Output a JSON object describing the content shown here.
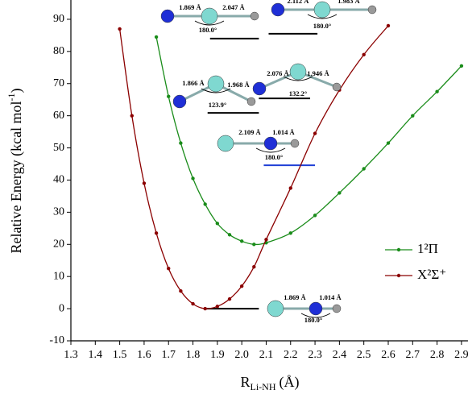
{
  "chart_data": {
    "type": "line",
    "x_label": {
      "main": "R",
      "sub": "Li-NH",
      "unit": "(Å)"
    },
    "y_label": {
      "main": "Relative Energy (kcal mol",
      "sup": "-1",
      "end": ")"
    },
    "xlim": [
      1.3,
      2.93
    ],
    "ylim": [
      -10,
      96
    ],
    "xticks": [
      1.3,
      1.4,
      1.5,
      1.6,
      1.7,
      1.8,
      1.9,
      {
        "value": 2,
        "label": "2.0"
      },
      2.1,
      2.2,
      2.3,
      2.4,
      2.5,
      2.6,
      2.7,
      2.8,
      2.9
    ],
    "yticks": [
      -10,
      0,
      10,
      20,
      30,
      40,
      50,
      60,
      70,
      80,
      90
    ],
    "series": [
      {
        "name": "1²Π",
        "color": "#1a8c1a",
        "x": [
          1.65,
          1.7,
          1.75,
          1.8,
          1.85,
          1.9,
          1.95,
          2.0,
          2.05,
          2.1,
          2.2,
          2.3,
          2.4,
          2.5,
          2.6,
          2.7,
          2.8,
          2.9
        ],
        "values": [
          84.5,
          66,
          51.5,
          40.5,
          32.5,
          26.5,
          23,
          21,
          20,
          20.5,
          23.5,
          29,
          36,
          43.5,
          51.5,
          60,
          67.5,
          75.5
        ]
      },
      {
        "name": "X²Σ⁺",
        "color": "#8b0000",
        "x": [
          1.5,
          1.55,
          1.6,
          1.65,
          1.7,
          1.75,
          1.8,
          1.85,
          1.9,
          1.95,
          2.0,
          2.05,
          2.1,
          2.2,
          2.3,
          2.4,
          2.5,
          2.6
        ],
        "values": [
          87,
          60,
          39,
          23.5,
          12.5,
          5.5,
          1.5,
          0,
          0.7,
          3,
          7,
          13,
          21.5,
          37.5,
          54.5,
          68,
          79,
          88
        ]
      }
    ],
    "levels": [
      {
        "x": [
          1.87,
          2.07
        ],
        "y": 84,
        "color": "#000000"
      },
      {
        "x": [
          2.11,
          2.31
        ],
        "y": 85.5,
        "color": "#000000"
      },
      {
        "x": [
          1.86,
          2.07
        ],
        "y": 60.9,
        "color": "#000000"
      },
      {
        "x": [
          2.07,
          2.28
        ],
        "y": 65.4,
        "color": "#000000"
      },
      {
        "x": [
          2.09,
          2.3
        ],
        "y": 44.6,
        "color": "#1f3fd6"
      },
      {
        "x": [
          1.85,
          2.07
        ],
        "y": 0,
        "color": "#000000"
      }
    ],
    "structures": [
      {
        "labels": [
          "1.869 Å",
          "2.047 Å",
          "180.0°"
        ]
      },
      {
        "labels": [
          "2.112 Å",
          "1.983 Å",
          "180.0°"
        ]
      },
      {
        "labels": [
          "1.866 Å",
          "1.968 Å",
          "123.9°"
        ]
      },
      {
        "labels": [
          "2.076 Å",
          "1.946 Å",
          "132.2°"
        ]
      },
      {
        "labels": [
          "2.109 Å",
          "1.014 Å",
          "180.0°"
        ]
      },
      {
        "labels": [
          "1.869 Å",
          "1.014 Å",
          "180.0°"
        ]
      }
    ]
  }
}
